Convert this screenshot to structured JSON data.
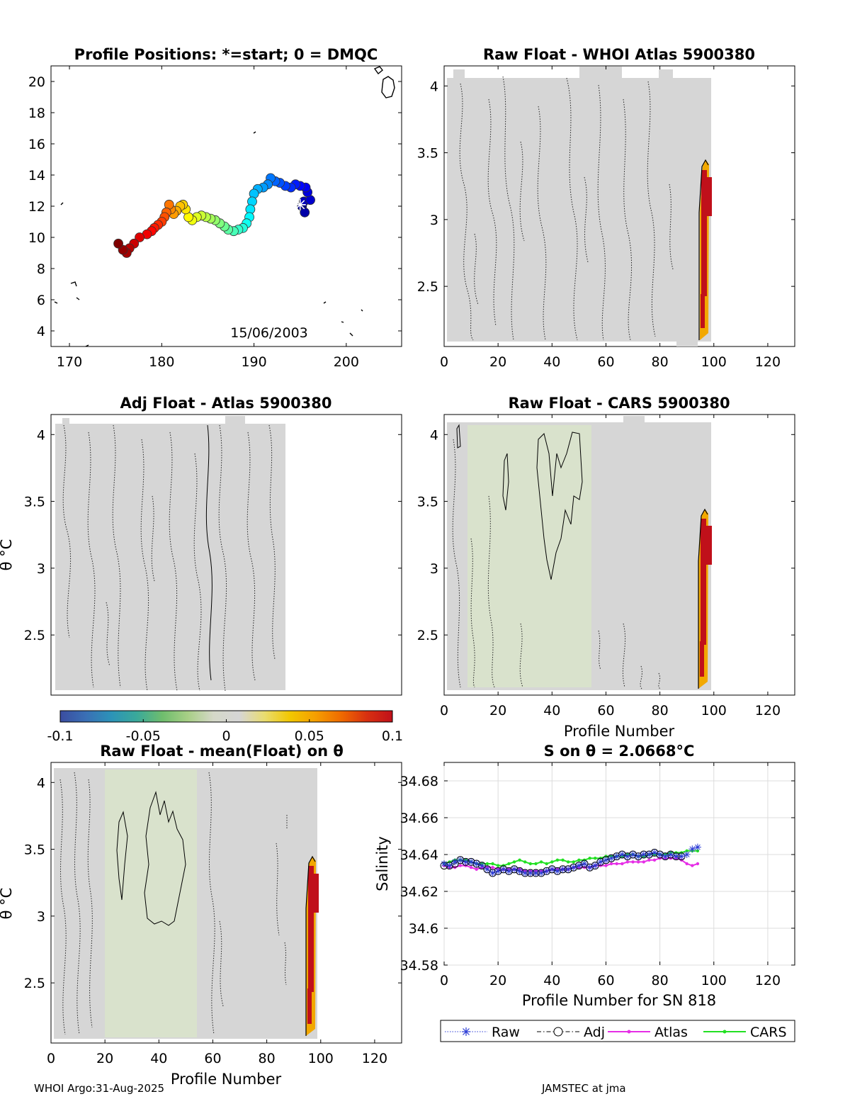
{
  "footer": {
    "left": "WHOI Argo:31-Aug-2025",
    "right": "JAMSTEC at jma"
  },
  "colors": {
    "panel_fill": "#d6d6d6",
    "green_fill": "#d7e3c7",
    "accent_red": "#c0101a",
    "accent_orange": "#f2a800"
  },
  "chart_data": [
    {
      "type": "scatter",
      "title": "Profile Positions: *=start; 0 = DMQC",
      "annotation": "15/06/2003",
      "xlim": [
        168,
        206
      ],
      "ylim": [
        3,
        21
      ],
      "xticks": [
        170,
        180,
        190,
        200
      ],
      "yticks": [
        4,
        6,
        8,
        10,
        12,
        14,
        16,
        18,
        20
      ],
      "track": [
        [
          195.2,
          12.0
        ],
        [
          195.5,
          11.6
        ],
        [
          195.4,
          12.3
        ],
        [
          196.1,
          12.4
        ],
        [
          195.8,
          12.9
        ],
        [
          195.6,
          13.2
        ],
        [
          195.0,
          13.3
        ],
        [
          194.5,
          13.4
        ],
        [
          194.0,
          13.2
        ],
        [
          193.4,
          13.3
        ],
        [
          192.8,
          13.5
        ],
        [
          192.3,
          13.6
        ],
        [
          191.8,
          13.8
        ],
        [
          191.5,
          13.4
        ],
        [
          191.0,
          13.2
        ],
        [
          190.4,
          13.1
        ],
        [
          190.0,
          12.8
        ],
        [
          189.8,
          12.3
        ],
        [
          189.6,
          11.8
        ],
        [
          189.5,
          11.3
        ],
        [
          189.2,
          10.9
        ],
        [
          188.8,
          10.6
        ],
        [
          188.3,
          10.5
        ],
        [
          187.8,
          10.4
        ],
        [
          187.2,
          10.5
        ],
        [
          186.8,
          10.7
        ],
        [
          186.3,
          10.9
        ],
        [
          185.8,
          11.1
        ],
        [
          185.3,
          11.2
        ],
        [
          184.8,
          11.3
        ],
        [
          184.3,
          11.4
        ],
        [
          183.8,
          11.3
        ],
        [
          183.3,
          11.1
        ],
        [
          182.9,
          11.3
        ],
        [
          182.6,
          11.8
        ],
        [
          182.3,
          12.1
        ],
        [
          182.0,
          12.0
        ],
        [
          181.6,
          11.7
        ],
        [
          181.3,
          11.5
        ],
        [
          181.0,
          11.8
        ],
        [
          180.8,
          12.1
        ],
        [
          180.5,
          11.6
        ],
        [
          180.3,
          11.3
        ],
        [
          180.0,
          11.0
        ],
        [
          179.6,
          10.8
        ],
        [
          179.2,
          10.6
        ],
        [
          178.9,
          10.4
        ],
        [
          178.4,
          10.2
        ],
        [
          177.6,
          10.0
        ],
        [
          177.0,
          9.6
        ],
        [
          176.5,
          9.3
        ],
        [
          176.2,
          9.0
        ],
        [
          175.8,
          9.2
        ],
        [
          175.3,
          9.6
        ]
      ],
      "start": [
        195.0,
        12.1
      ]
    },
    {
      "type": "heatmap",
      "title": "Raw Float - WHOI Atlas  5900380",
      "xlim": [
        0,
        130
      ],
      "ylim": [
        2.05,
        4.15
      ],
      "xticks": [
        0,
        20,
        40,
        60,
        80,
        100,
        120
      ],
      "yticks": [
        2.5,
        3,
        3.5,
        4
      ],
      "ytick_labels": [
        "2.5",
        "3",
        "3.5",
        "4"
      ],
      "profiles": 98,
      "xlabel": "",
      "ylabel": ""
    },
    {
      "type": "heatmap",
      "title": "Adj Float - Atlas  5900380",
      "xlim": [
        0,
        130
      ],
      "ylim": [
        2.05,
        4.15
      ],
      "xticks": [],
      "yticks": [
        2.5,
        3,
        3.5,
        4
      ],
      "ytick_labels": [
        "2.5",
        "3",
        "3.5",
        "4"
      ],
      "profiles": 87,
      "xlabel": "",
      "ylabel": "θ °C"
    },
    {
      "type": "heatmap",
      "title": "Raw Float - CARS  5900380",
      "xlim": [
        0,
        130
      ],
      "ylim": [
        2.05,
        4.15
      ],
      "xticks": [
        0,
        20,
        40,
        60,
        80,
        100,
        120
      ],
      "yticks": [
        2.5,
        3,
        3.5,
        4
      ],
      "ytick_labels": [
        "2.5",
        "3",
        "3.5",
        "4"
      ],
      "profiles": 98,
      "xlabel": "Profile Number",
      "ylabel": ""
    },
    {
      "type": "heatmap",
      "title": "Raw Float - mean(Float) on θ",
      "xlim": [
        0,
        130
      ],
      "ylim": [
        2.05,
        4.15
      ],
      "xticks": [
        0,
        20,
        40,
        60,
        80,
        100,
        120
      ],
      "yticks": [
        2.5,
        3,
        3.5,
        4
      ],
      "ytick_labels": [
        "2.5",
        "3",
        "3.5",
        "4"
      ],
      "profiles": 98,
      "xlabel": "Profile Number",
      "ylabel": "θ °C"
    },
    {
      "type": "line",
      "title": "S on θ = 2.0668°C",
      "xlabel": "Profile Number for SN 818",
      "ylabel": "Salinity",
      "xlim": [
        0,
        130
      ],
      "ylim": [
        34.58,
        34.69
      ],
      "xticks": [
        0,
        20,
        40,
        60,
        80,
        100,
        120
      ],
      "yticks": [
        34.58,
        34.6,
        34.62,
        34.64,
        34.66,
        34.68
      ],
      "ytick_labels": [
        "34.58",
        "34.6",
        "34.62",
        "34.64",
        "34.66",
        "34.68"
      ],
      "legend": [
        "Raw",
        "Adj",
        "Atlas",
        "CARS"
      ],
      "legend_position": "bottom",
      "x": [
        0,
        2,
        4,
        6,
        8,
        10,
        12,
        14,
        16,
        18,
        20,
        22,
        24,
        26,
        28,
        30,
        32,
        34,
        36,
        38,
        40,
        42,
        44,
        46,
        48,
        50,
        52,
        54,
        56,
        58,
        60,
        62,
        64,
        66,
        68,
        70,
        72,
        74,
        76,
        78,
        80,
        82,
        84,
        86,
        88,
        90,
        92,
        94
      ],
      "series": [
        {
          "name": "Raw",
          "values": [
            34.635,
            34.634,
            34.636,
            34.637,
            34.636,
            34.636,
            34.635,
            34.634,
            34.632,
            34.63,
            34.631,
            34.632,
            34.631,
            34.632,
            34.631,
            34.63,
            34.63,
            34.63,
            34.63,
            34.631,
            34.632,
            34.631,
            34.632,
            34.632,
            34.633,
            34.634,
            34.635,
            34.633,
            34.634,
            34.636,
            34.637,
            34.638,
            34.639,
            34.64,
            34.639,
            34.64,
            34.639,
            34.64,
            34.64,
            34.641,
            34.64,
            34.639,
            34.64,
            34.639,
            34.639,
            34.64,
            34.643,
            34.644
          ]
        },
        {
          "name": "Adj",
          "values": [
            34.634,
            34.634,
            34.635,
            34.637,
            34.636,
            34.636,
            34.635,
            34.634,
            34.632,
            34.63,
            34.631,
            34.632,
            34.631,
            34.632,
            34.631,
            34.63,
            34.63,
            34.63,
            34.63,
            34.631,
            34.632,
            34.631,
            34.632,
            34.632,
            34.633,
            34.634,
            34.635,
            34.633,
            34.634,
            34.636,
            34.637,
            34.638,
            34.639,
            34.64,
            34.639,
            34.64,
            34.639,
            34.64,
            34.64,
            34.641,
            34.64,
            34.639,
            34.64,
            34.639,
            34.639,
            null,
            null,
            null
          ]
        },
        {
          "name": "Atlas",
          "values": [
            34.634,
            34.633,
            34.633,
            34.634,
            34.634,
            34.633,
            34.632,
            34.633,
            34.633,
            34.633,
            34.632,
            34.632,
            34.632,
            34.632,
            34.632,
            34.631,
            34.631,
            34.631,
            34.631,
            34.631,
            34.632,
            34.632,
            34.632,
            34.632,
            34.633,
            34.633,
            34.633,
            34.633,
            34.634,
            34.634,
            34.634,
            34.635,
            34.635,
            34.635,
            34.636,
            34.636,
            34.636,
            34.636,
            34.637,
            34.637,
            34.638,
            34.638,
            34.638,
            34.638,
            34.637,
            34.635,
            34.634,
            34.635
          ]
        },
        {
          "name": "CARS",
          "values": [
            34.635,
            34.636,
            34.637,
            34.637,
            34.637,
            34.636,
            34.635,
            34.635,
            34.635,
            34.635,
            34.634,
            34.634,
            34.635,
            34.636,
            34.637,
            34.636,
            34.635,
            34.635,
            34.636,
            34.635,
            34.636,
            34.637,
            34.637,
            34.636,
            34.636,
            34.637,
            34.637,
            34.638,
            34.638,
            34.638,
            34.639,
            34.639,
            34.639,
            34.639,
            34.64,
            34.64,
            34.639,
            34.639,
            34.64,
            34.64,
            34.64,
            34.64,
            34.641,
            34.641,
            34.641,
            34.642,
            34.642,
            34.642
          ]
        }
      ]
    },
    {
      "type": "colorbar",
      "ticks": [
        -0.1,
        -0.05,
        0,
        0.05,
        0.1
      ],
      "tick_labels": [
        "-0.1",
        "-0.05",
        "0",
        "0.05",
        "0.1"
      ],
      "colors": [
        "#3b4da0",
        "#3a6fb5",
        "#2c93b8",
        "#3aa99a",
        "#6fbd6d",
        "#a8cf86",
        "#d5d8c8",
        "#d6d6d6",
        "#e9dc6f",
        "#f2c700",
        "#f59e00",
        "#ef6a00",
        "#d83010",
        "#c0101a"
      ]
    }
  ]
}
